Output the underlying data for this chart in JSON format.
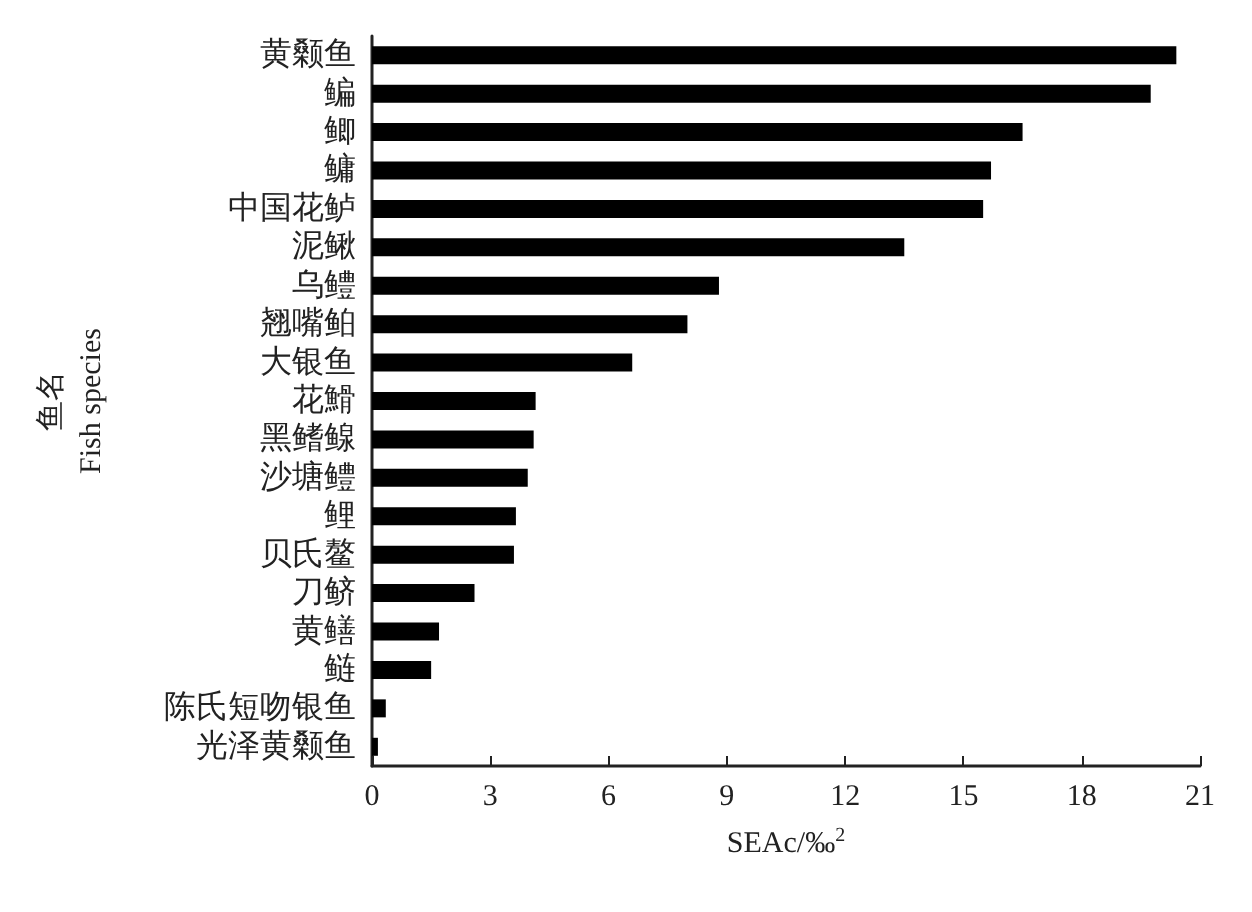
{
  "chart_data": {
    "type": "bar",
    "orientation": "horizontal",
    "xlabel": "SEAc/‰$^{2}$",
    "ylabel": "鱼名\nFish species",
    "categories": [
      "黄颡鱼",
      "鳊",
      "鲫",
      "鳙",
      "中国花鲈",
      "泥鳅",
      "乌鳢",
      "翘嘴鲌",
      "大银鱼",
      "花䱻",
      "黑鳍鳈",
      "沙塘鳢",
      "鲤",
      "贝氏鳌",
      "刀鲚",
      "黄鳝",
      "鲢",
      "陈氏短吻银鱼",
      "光泽黄颡鱼"
    ],
    "values": [
      20.4,
      19.75,
      16.5,
      15.7,
      15.5,
      13.5,
      8.8,
      8.0,
      6.6,
      4.15,
      4.1,
      3.95,
      3.65,
      3.6,
      2.6,
      1.7,
      1.5,
      0.35,
      0.15
    ],
    "color": "#000000",
    "xlim": [
      0,
      21
    ],
    "xticks": [
      0,
      3,
      6,
      9,
      12,
      15,
      18,
      21
    ],
    "grid": false
  }
}
